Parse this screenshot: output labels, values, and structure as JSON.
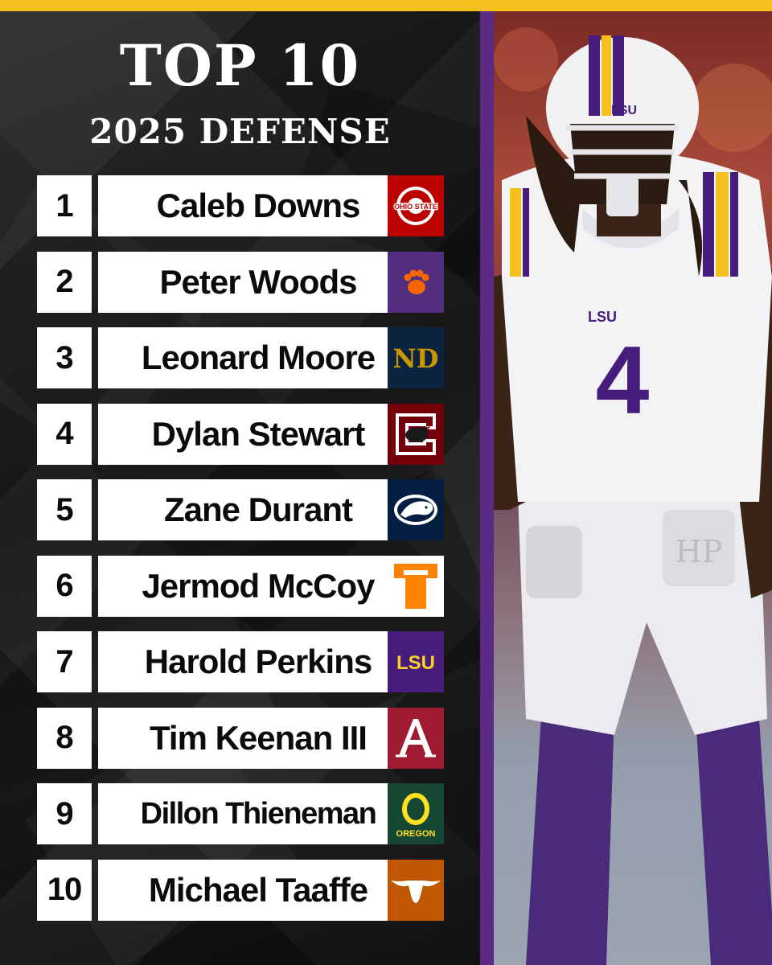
{
  "title": "TOP 10",
  "subtitle": "2025 DEFENSE",
  "colors": {
    "accent_yellow": "#f4c01e",
    "divider_purple": "#5b2a86",
    "card_white": "#ffffff",
    "text_black": "#0b0b0b"
  },
  "rankings": [
    {
      "rank": "1",
      "name": "Caleb Downs",
      "logo": "ohio-state-logo",
      "logo_text": "OHIO STATE",
      "logo_bg": "#bb0000"
    },
    {
      "rank": "2",
      "name": "Peter Woods",
      "logo": "clemson-paw-logo",
      "logo_bg": "#522d80"
    },
    {
      "rank": "3",
      "name": "Leonard Moore",
      "logo": "notre-dame-logo",
      "logo_text": "ND",
      "logo_bg": "#0c2340"
    },
    {
      "rank": "4",
      "name": "Dylan Stewart",
      "logo": "south-carolina-logo",
      "logo_bg": "#73000a"
    },
    {
      "rank": "5",
      "name": "Zane Durant",
      "logo": "penn-state-logo",
      "logo_bg": "#041e42"
    },
    {
      "rank": "6",
      "name": "Jermod McCoy",
      "logo": "tennessee-logo",
      "logo_bg": "#ffffff"
    },
    {
      "rank": "7",
      "name": "Harold Perkins",
      "logo": "lsu-logo",
      "logo_text": "LSU",
      "logo_bg": "#461d7c"
    },
    {
      "rank": "8",
      "name": "Tim Keenan III",
      "logo": "alabama-logo",
      "logo_bg": "#9e1b32"
    },
    {
      "rank": "9",
      "name": "Dillon Thieneman",
      "logo": "oregon-logo",
      "logo_text": "OREGON",
      "logo_bg": "#154733"
    },
    {
      "rank": "10",
      "name": "Michael Taaffe",
      "logo": "texas-longhorn-logo",
      "logo_bg": "#bf5700"
    }
  ],
  "player_photo": {
    "jersey_number": "4",
    "helmet_text": "LSU",
    "chest_text": "LSU",
    "pad_text": "HP"
  }
}
